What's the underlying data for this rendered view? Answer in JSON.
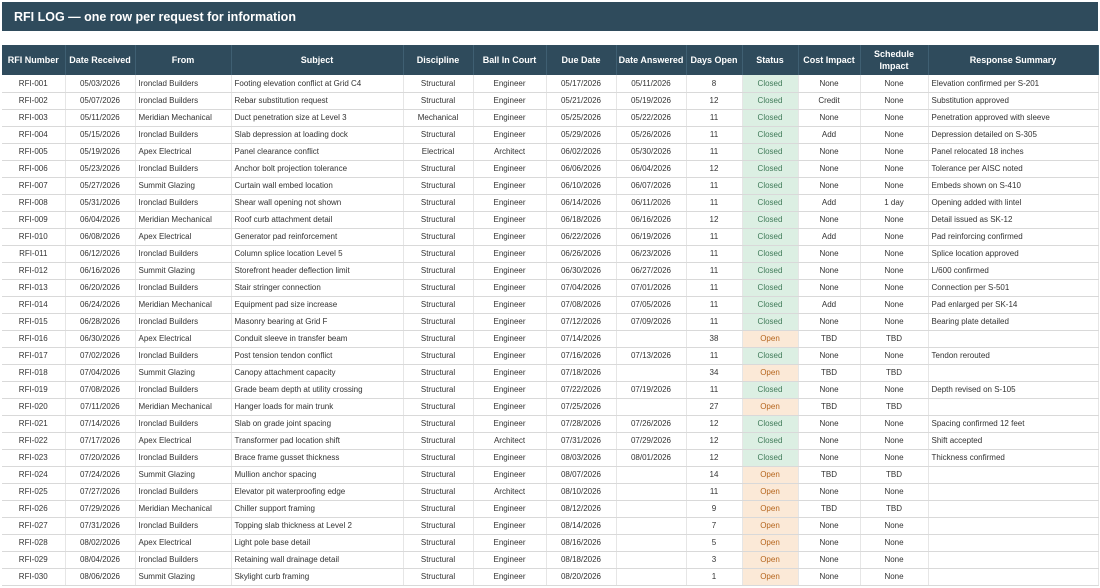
{
  "title": "RFI LOG — one row per request for information",
  "colors": {
    "header_bg": "#2f4b5c",
    "closed_bg": "#dcefe3",
    "open_bg": "#fbe9d7"
  },
  "headers": [
    "RFI Number",
    "Date Received",
    "From",
    "Subject",
    "Discipline",
    "Ball In Court",
    "Due Date",
    "Date Answered",
    "Days Open",
    "Status",
    "Cost Impact",
    "Schedule Impact",
    "Response Summary"
  ],
  "rows": [
    [
      "RFI-001",
      "05/03/2026",
      "Ironclad Builders",
      "Footing elevation conflict at Grid C4",
      "Structural",
      "Engineer",
      "05/17/2026",
      "05/11/2026",
      "8",
      "Closed",
      "None",
      "None",
      "Elevation confirmed per S-201"
    ],
    [
      "RFI-002",
      "05/07/2026",
      "Ironclad Builders",
      "Rebar substitution request",
      "Structural",
      "Engineer",
      "05/21/2026",
      "05/19/2026",
      "12",
      "Closed",
      "Credit",
      "None",
      "Substitution approved"
    ],
    [
      "RFI-003",
      "05/11/2026",
      "Meridian Mechanical",
      "Duct penetration size at Level 3",
      "Mechanical",
      "Engineer",
      "05/25/2026",
      "05/22/2026",
      "11",
      "Closed",
      "None",
      "None",
      "Penetration approved with sleeve"
    ],
    [
      "RFI-004",
      "05/15/2026",
      "Ironclad Builders",
      "Slab depression at loading dock",
      "Structural",
      "Engineer",
      "05/29/2026",
      "05/26/2026",
      "11",
      "Closed",
      "Add",
      "None",
      "Depression detailed on S-305"
    ],
    [
      "RFI-005",
      "05/19/2026",
      "Apex Electrical",
      "Panel clearance conflict",
      "Electrical",
      "Architect",
      "06/02/2026",
      "05/30/2026",
      "11",
      "Closed",
      "None",
      "None",
      "Panel relocated 18 inches"
    ],
    [
      "RFI-006",
      "05/23/2026",
      "Ironclad Builders",
      "Anchor bolt projection tolerance",
      "Structural",
      "Engineer",
      "06/06/2026",
      "06/04/2026",
      "12",
      "Closed",
      "None",
      "None",
      "Tolerance per AISC noted"
    ],
    [
      "RFI-007",
      "05/27/2026",
      "Summit Glazing",
      "Curtain wall embed location",
      "Structural",
      "Engineer",
      "06/10/2026",
      "06/07/2026",
      "11",
      "Closed",
      "None",
      "None",
      "Embeds shown on S-410"
    ],
    [
      "RFI-008",
      "05/31/2026",
      "Ironclad Builders",
      "Shear wall opening not shown",
      "Structural",
      "Engineer",
      "06/14/2026",
      "06/11/2026",
      "11",
      "Closed",
      "Add",
      "1 day",
      "Opening added with lintel"
    ],
    [
      "RFI-009",
      "06/04/2026",
      "Meridian Mechanical",
      "Roof curb attachment detail",
      "Structural",
      "Engineer",
      "06/18/2026",
      "06/16/2026",
      "12",
      "Closed",
      "None",
      "None",
      "Detail issued as SK-12"
    ],
    [
      "RFI-010",
      "06/08/2026",
      "Apex Electrical",
      "Generator pad reinforcement",
      "Structural",
      "Engineer",
      "06/22/2026",
      "06/19/2026",
      "11",
      "Closed",
      "Add",
      "None",
      "Pad reinforcing confirmed"
    ],
    [
      "RFI-011",
      "06/12/2026",
      "Ironclad Builders",
      "Column splice location Level 5",
      "Structural",
      "Engineer",
      "06/26/2026",
      "06/23/2026",
      "11",
      "Closed",
      "None",
      "None",
      "Splice location approved"
    ],
    [
      "RFI-012",
      "06/16/2026",
      "Summit Glazing",
      "Storefront header deflection limit",
      "Structural",
      "Engineer",
      "06/30/2026",
      "06/27/2026",
      "11",
      "Closed",
      "None",
      "None",
      "L/600 confirmed"
    ],
    [
      "RFI-013",
      "06/20/2026",
      "Ironclad Builders",
      "Stair stringer connection",
      "Structural",
      "Engineer",
      "07/04/2026",
      "07/01/2026",
      "11",
      "Closed",
      "None",
      "None",
      "Connection per S-501"
    ],
    [
      "RFI-014",
      "06/24/2026",
      "Meridian Mechanical",
      "Equipment pad size increase",
      "Structural",
      "Engineer",
      "07/08/2026",
      "07/05/2026",
      "11",
      "Closed",
      "Add",
      "None",
      "Pad enlarged per SK-14"
    ],
    [
      "RFI-015",
      "06/28/2026",
      "Ironclad Builders",
      "Masonry bearing at Grid F",
      "Structural",
      "Engineer",
      "07/12/2026",
      "07/09/2026",
      "11",
      "Closed",
      "None",
      "None",
      "Bearing plate detailed"
    ],
    [
      "RFI-016",
      "06/30/2026",
      "Apex Electrical",
      "Conduit sleeve in transfer beam",
      "Structural",
      "Engineer",
      "07/14/2026",
      "",
      "38",
      "Open",
      "TBD",
      "TBD",
      ""
    ],
    [
      "RFI-017",
      "07/02/2026",
      "Ironclad Builders",
      "Post tension tendon conflict",
      "Structural",
      "Engineer",
      "07/16/2026",
      "07/13/2026",
      "11",
      "Closed",
      "None",
      "None",
      "Tendon rerouted"
    ],
    [
      "RFI-018",
      "07/04/2026",
      "Summit Glazing",
      "Canopy attachment capacity",
      "Structural",
      "Engineer",
      "07/18/2026",
      "",
      "34",
      "Open",
      "TBD",
      "TBD",
      ""
    ],
    [
      "RFI-019",
      "07/08/2026",
      "Ironclad Builders",
      "Grade beam depth at utility crossing",
      "Structural",
      "Engineer",
      "07/22/2026",
      "07/19/2026",
      "11",
      "Closed",
      "None",
      "None",
      "Depth revised on S-105"
    ],
    [
      "RFI-020",
      "07/11/2026",
      "Meridian Mechanical",
      "Hanger loads for main trunk",
      "Structural",
      "Engineer",
      "07/25/2026",
      "",
      "27",
      "Open",
      "TBD",
      "TBD",
      ""
    ],
    [
      "RFI-021",
      "07/14/2026",
      "Ironclad Builders",
      "Slab on grade joint spacing",
      "Structural",
      "Engineer",
      "07/28/2026",
      "07/26/2026",
      "12",
      "Closed",
      "None",
      "None",
      "Spacing confirmed 12 feet"
    ],
    [
      "RFI-022",
      "07/17/2026",
      "Apex Electrical",
      "Transformer pad location shift",
      "Structural",
      "Architect",
      "07/31/2026",
      "07/29/2026",
      "12",
      "Closed",
      "None",
      "None",
      "Shift accepted"
    ],
    [
      "RFI-023",
      "07/20/2026",
      "Ironclad Builders",
      "Brace frame gusset thickness",
      "Structural",
      "Engineer",
      "08/03/2026",
      "08/01/2026",
      "12",
      "Closed",
      "None",
      "None",
      "Thickness confirmed"
    ],
    [
      "RFI-024",
      "07/24/2026",
      "Summit Glazing",
      "Mullion anchor spacing",
      "Structural",
      "Engineer",
      "08/07/2026",
      "",
      "14",
      "Open",
      "TBD",
      "TBD",
      ""
    ],
    [
      "RFI-025",
      "07/27/2026",
      "Ironclad Builders",
      "Elevator pit waterproofing edge",
      "Structural",
      "Architect",
      "08/10/2026",
      "",
      "11",
      "Open",
      "None",
      "None",
      ""
    ],
    [
      "RFI-026",
      "07/29/2026",
      "Meridian Mechanical",
      "Chiller support framing",
      "Structural",
      "Engineer",
      "08/12/2026",
      "",
      "9",
      "Open",
      "TBD",
      "TBD",
      ""
    ],
    [
      "RFI-027",
      "07/31/2026",
      "Ironclad Builders",
      "Topping slab thickness at Level 2",
      "Structural",
      "Engineer",
      "08/14/2026",
      "",
      "7",
      "Open",
      "None",
      "None",
      ""
    ],
    [
      "RFI-028",
      "08/02/2026",
      "Apex Electrical",
      "Light pole base detail",
      "Structural",
      "Engineer",
      "08/16/2026",
      "",
      "5",
      "Open",
      "None",
      "None",
      ""
    ],
    [
      "RFI-029",
      "08/04/2026",
      "Ironclad Builders",
      "Retaining wall drainage detail",
      "Structural",
      "Engineer",
      "08/18/2026",
      "",
      "3",
      "Open",
      "None",
      "None",
      ""
    ],
    [
      "RFI-030",
      "08/06/2026",
      "Summit Glazing",
      "Skylight curb framing",
      "Structural",
      "Engineer",
      "08/20/2026",
      "",
      "1",
      "Open",
      "None",
      "None",
      ""
    ]
  ]
}
